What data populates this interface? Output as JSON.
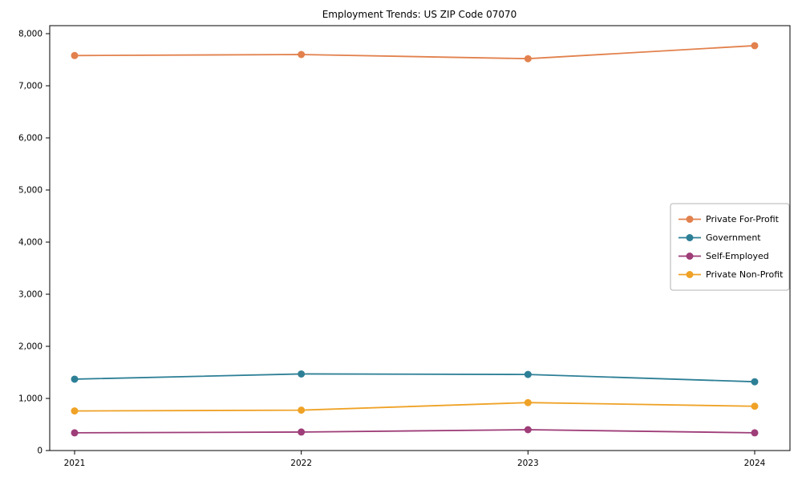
{
  "title": "Employment Trends: US ZIP Code 07070",
  "chart_data": {
    "type": "line",
    "title": "Employment Trends: US ZIP Code 07070",
    "x": [
      2021,
      2022,
      2023,
      2024
    ],
    "categories": [
      "2021",
      "2022",
      "2023",
      "2024"
    ],
    "series": [
      {
        "name": "Private For-Profit",
        "color": "#e2814d",
        "values": [
          7580,
          7600,
          7520,
          7770
        ]
      },
      {
        "name": "Government",
        "color": "#2d7f96",
        "values": [
          1370,
          1470,
          1460,
          1320
        ]
      },
      {
        "name": "Self-Employed",
        "color": "#9e3d78",
        "values": [
          340,
          355,
          400,
          340
        ]
      },
      {
        "name": "Private Non-Profit",
        "color": "#efa226",
        "values": [
          760,
          775,
          920,
          850
        ]
      }
    ],
    "xlabel": "",
    "ylabel": "",
    "ylim": [
      0,
      8000
    ],
    "yticks": [
      0,
      1000,
      2000,
      3000,
      4000,
      5000,
      6000,
      7000,
      8000
    ],
    "ytick_labels": [
      "0",
      "1,000",
      "2,000",
      "3,000",
      "4,000",
      "5,000",
      "6,000",
      "7,000",
      "8,000"
    ],
    "grid": false,
    "marker": "o",
    "legend_position": "center right"
  }
}
